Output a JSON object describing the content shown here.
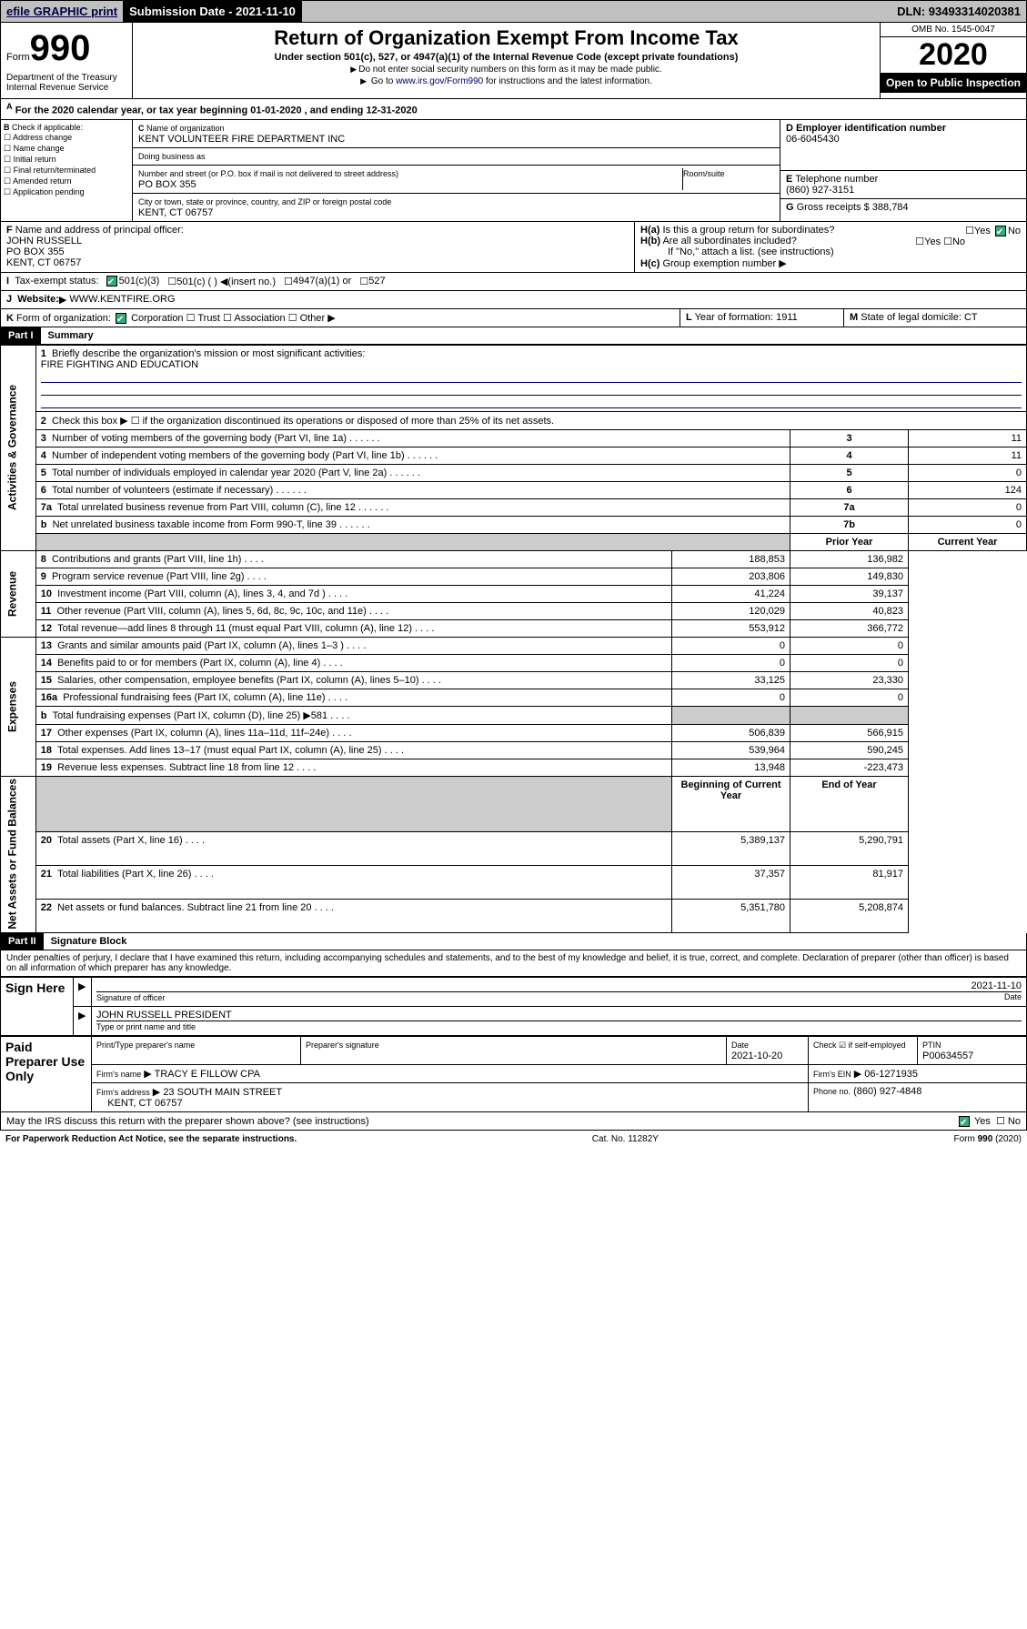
{
  "topbar": {
    "efile": "efile GRAPHIC print",
    "submission_label": "Submission Date -",
    "submission_date": "2021-11-10",
    "dln_label": "DLN:",
    "dln": "93493314020381"
  },
  "header": {
    "form_word": "Form",
    "form_num": "990",
    "title": "Return of Organization Exempt From Income Tax",
    "subtitle": "Under section 501(c), 527, or 4947(a)(1) of the Internal Revenue Code (except private foundations)",
    "note1": "Do not enter social security numbers on this form as it may be made public.",
    "note2_pre": "Go to ",
    "note2_link": "www.irs.gov/Form990",
    "note2_post": " for instructions and the latest information.",
    "omb": "OMB No. 1545-0047",
    "year": "2020",
    "inspection": "Open to Public Inspection",
    "dept": "Department of the Treasury\nInternal Revenue Service"
  },
  "line_a": "For the 2020 calendar year, or tax year beginning 01-01-2020    , and ending 12-31-2020",
  "box_b": {
    "label": "Check if applicable:",
    "items": [
      "Address change",
      "Name change",
      "Initial return",
      "Final return/terminated",
      "Amended return",
      "Application pending"
    ]
  },
  "box_c": {
    "name_label": "Name of organization",
    "name": "KENT VOLUNTEER FIRE DEPARTMENT INC",
    "dba_label": "Doing business as",
    "street_label": "Number and street (or P.O. box if mail is not delivered to street address)",
    "street": "PO BOX 355",
    "room_label": "Room/suite",
    "city_label": "City or town, state or province, country, and ZIP or foreign postal code",
    "city": "KENT, CT  06757"
  },
  "box_d": {
    "label": "Employer identification number",
    "value": "06-6045430"
  },
  "box_e": {
    "label": "Telephone number",
    "value": "(860) 927-3151"
  },
  "box_g": {
    "label": "Gross receipts $",
    "value": "388,784"
  },
  "box_f": {
    "label": "Name and address of principal officer:",
    "name": "JOHN RUSSELL",
    "street": "PO BOX 355",
    "city": "KENT, CT  06757"
  },
  "box_h": {
    "ha": "Is this a group return for subordinates?",
    "hb": "Are all subordinates included?",
    "hb_note": "If \"No,\" attach a list. (see instructions)",
    "hc": "Group exemption number"
  },
  "box_i": {
    "label": "Tax-exempt status:",
    "opts": [
      "501(c)(3)",
      "501(c) (   ) ◀(insert no.)",
      "4947(a)(1) or",
      "527"
    ]
  },
  "box_j": {
    "label": "Website:",
    "value": "WWW.KENTFIRE.ORG"
  },
  "box_k": {
    "label": "Form of organization:",
    "opts": [
      "Corporation",
      "Trust",
      "Association",
      "Other"
    ]
  },
  "box_l": {
    "label": "Year of formation:",
    "value": "1911"
  },
  "box_m": {
    "label": "State of legal domicile:",
    "value": "CT"
  },
  "part1": {
    "hdr": "Part I",
    "title": "Summary"
  },
  "summary": {
    "q1_label": "Briefly describe the organization's mission or most significant activities:",
    "q1_text": "FIRE FIGHTING AND EDUCATION",
    "q2": "Check this box ▶ ☐  if the organization discontinued its operations or disposed of more than 25% of its net assets.",
    "rows_top": [
      {
        "n": "3",
        "t": "Number of voting members of the governing body (Part VI, line 1a)",
        "box": "3",
        "v": "11"
      },
      {
        "n": "4",
        "t": "Number of independent voting members of the governing body (Part VI, line 1b)",
        "box": "4",
        "v": "11"
      },
      {
        "n": "5",
        "t": "Total number of individuals employed in calendar year 2020 (Part V, line 2a)",
        "box": "5",
        "v": "0"
      },
      {
        "n": "6",
        "t": "Total number of volunteers (estimate if necessary)",
        "box": "6",
        "v": "124"
      },
      {
        "n": "7a",
        "t": "Total unrelated business revenue from Part VIII, column (C), line 12",
        "box": "7a",
        "v": "0"
      },
      {
        "n": "b",
        "t": "Net unrelated business taxable income from Form 990-T, line 39",
        "box": "7b",
        "v": "0"
      }
    ],
    "col_hdr_prior": "Prior Year",
    "col_hdr_current": "Current Year",
    "revenue": [
      {
        "n": "8",
        "t": "Contributions and grants (Part VIII, line 1h)",
        "p": "188,853",
        "c": "136,982"
      },
      {
        "n": "9",
        "t": "Program service revenue (Part VIII, line 2g)",
        "p": "203,806",
        "c": "149,830"
      },
      {
        "n": "10",
        "t": "Investment income (Part VIII, column (A), lines 3, 4, and 7d )",
        "p": "41,224",
        "c": "39,137"
      },
      {
        "n": "11",
        "t": "Other revenue (Part VIII, column (A), lines 5, 6d, 8c, 9c, 10c, and 11e)",
        "p": "120,029",
        "c": "40,823"
      },
      {
        "n": "12",
        "t": "Total revenue—add lines 8 through 11 (must equal Part VIII, column (A), line 12)",
        "p": "553,912",
        "c": "366,772"
      }
    ],
    "expenses": [
      {
        "n": "13",
        "t": "Grants and similar amounts paid (Part IX, column (A), lines 1–3 )",
        "p": "0",
        "c": "0"
      },
      {
        "n": "14",
        "t": "Benefits paid to or for members (Part IX, column (A), line 4)",
        "p": "0",
        "c": "0"
      },
      {
        "n": "15",
        "t": "Salaries, other compensation, employee benefits (Part IX, column (A), lines 5–10)",
        "p": "33,125",
        "c": "23,330"
      },
      {
        "n": "16a",
        "t": "Professional fundraising fees (Part IX, column (A), line 11e)",
        "p": "0",
        "c": "0"
      },
      {
        "n": "b",
        "t": "Total fundraising expenses (Part IX, column (D), line 25) ▶581",
        "p": "",
        "c": "",
        "shade": true
      },
      {
        "n": "17",
        "t": "Other expenses (Part IX, column (A), lines 11a–11d, 11f–24e)",
        "p": "506,839",
        "c": "566,915"
      },
      {
        "n": "18",
        "t": "Total expenses. Add lines 13–17 (must equal Part IX, column (A), line 25)",
        "p": "539,964",
        "c": "590,245"
      },
      {
        "n": "19",
        "t": "Revenue less expenses. Subtract line 18 from line 12",
        "p": "13,948",
        "c": "-223,473"
      }
    ],
    "col_hdr_begin": "Beginning of Current Year",
    "col_hdr_end": "End of Year",
    "netassets": [
      {
        "n": "20",
        "t": "Total assets (Part X, line 16)",
        "p": "5,389,137",
        "c": "5,290,791"
      },
      {
        "n": "21",
        "t": "Total liabilities (Part X, line 26)",
        "p": "37,357",
        "c": "81,917"
      },
      {
        "n": "22",
        "t": "Net assets or fund balances. Subtract line 21 from line 20",
        "p": "5,351,780",
        "c": "5,208,874"
      }
    ],
    "vtabs": [
      "Activities & Governance",
      "Revenue",
      "Expenses",
      "Net Assets or Fund Balances"
    ]
  },
  "part2": {
    "hdr": "Part II",
    "title": "Signature Block"
  },
  "sig": {
    "perjury": "Under penalties of perjury, I declare that I have examined this return, including accompanying schedules and statements, and to the best of my knowledge and belief, it is true, correct, and complete. Declaration of preparer (other than officer) is based on all information of which preparer has any knowledge.",
    "sign_here": "Sign Here",
    "sig_officer": "Signature of officer",
    "sig_date": "2021-11-10",
    "date_label": "Date",
    "name_title": "JOHN RUSSELL PRESIDENT",
    "name_title_label": "Type or print name and title",
    "paid_prep": "Paid Preparer Use Only",
    "pt_name_label": "Print/Type preparer's name",
    "prep_sig_label": "Preparer's signature",
    "prep_date_label": "Date",
    "prep_date": "2021-10-20",
    "check_self": "Check ☑ if self-employed",
    "ptin_label": "PTIN",
    "ptin": "P00634557",
    "firm_name_label": "Firm's name",
    "firm_name": "TRACY E FILLOW CPA",
    "firm_ein_label": "Firm's EIN",
    "firm_ein": "06-1271935",
    "firm_addr_label": "Firm's address",
    "firm_addr": "23 SOUTH MAIN STREET",
    "firm_city": "KENT, CT  06757",
    "firm_phone_label": "Phone no.",
    "firm_phone": "(860) 927-4848",
    "discuss": "May the IRS discuss this return with the preparer shown above? (see instructions)"
  },
  "footer": {
    "pra": "For Paperwork Reduction Act Notice, see the separate instructions.",
    "cat": "Cat. No. 11282Y",
    "form": "Form 990 (2020)"
  }
}
